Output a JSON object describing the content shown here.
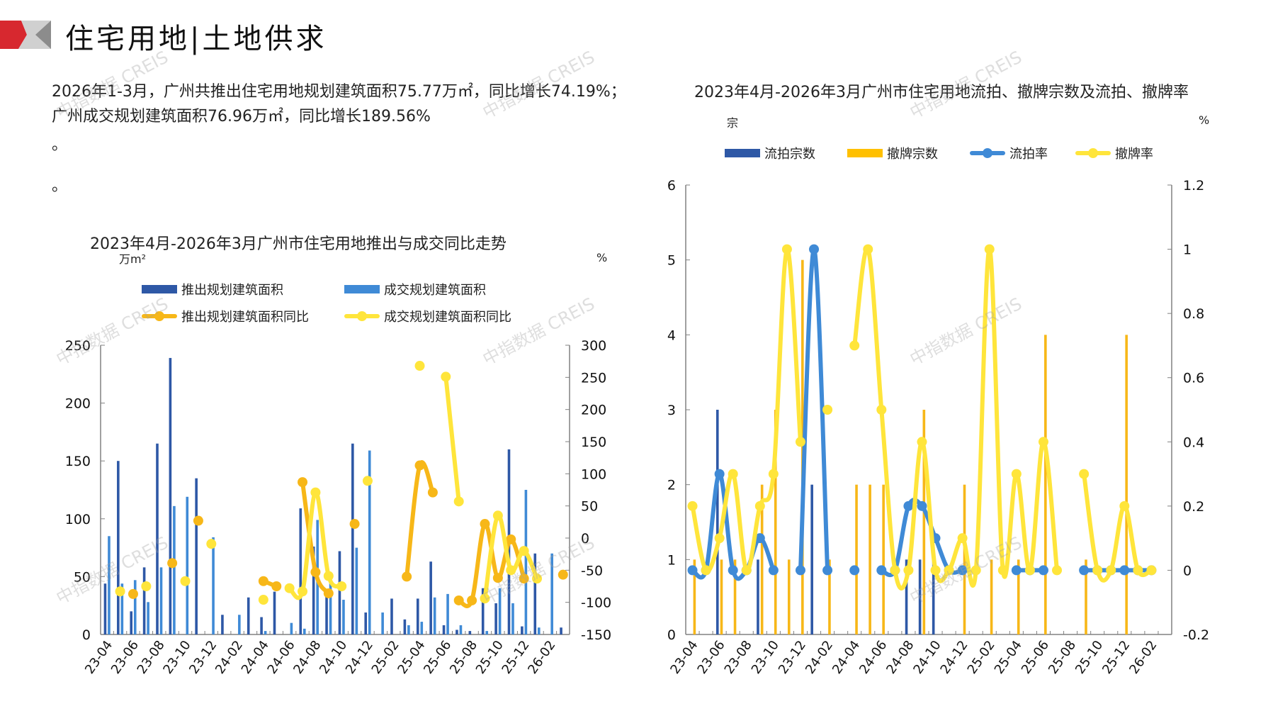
{
  "header": {
    "title": "住宅用地|土地供求",
    "summary": "2026年1-3月，广州共推出住宅用地规划建筑面积75.77万㎡，同比增长74.19%；广州成交规划建筑面积76.96万㎡，同比增长189.56%",
    "dot1": "。",
    "dot2": "。"
  },
  "watermark": "中指数据 CREIS",
  "colors": {
    "logo_red": "#d7282f",
    "logo_gray": "#a6a6a6",
    "dark_blue": "#2e58a6",
    "light_blue": "#3f8ad6",
    "orange": "#f7b718",
    "yellow": "#ffe53b",
    "axis": "#808080"
  },
  "chart_data": [
    {
      "type": "bar",
      "title": "2023年4月-2026年3月广州市住宅用地推出与成交同比走势",
      "ylabel": "万m²",
      "y2label": "%",
      "ylim": [
        0,
        250
      ],
      "yticks": [
        0,
        50,
        100,
        150,
        200,
        250
      ],
      "y2lim": [
        -150,
        300
      ],
      "y2ticks": [
        -150,
        -100,
        -50,
        0,
        50,
        100,
        150,
        200,
        250,
        300
      ],
      "legend_position": "top",
      "categories": [
        "23-04",
        "23-05",
        "23-06",
        "23-07",
        "23-08",
        "23-09",
        "23-10",
        "23-11",
        "23-12",
        "24-01",
        "24-02",
        "24-03",
        "24-04",
        "24-05",
        "24-06",
        "24-07",
        "24-08",
        "24-09",
        "24-10",
        "24-11",
        "24-12",
        "25-01",
        "25-02",
        "25-03",
        "25-04",
        "25-05",
        "25-06",
        "25-07",
        "25-08",
        "25-09",
        "25-10",
        "25-11",
        "25-12",
        "26-01",
        "26-02",
        "26-03"
      ],
      "xtick_labels": [
        "23-04",
        "23-06",
        "23-08",
        "23-10",
        "23-12",
        "24-02",
        "24-04",
        "24-06",
        "24-08",
        "24-10",
        "24-12",
        "25-02",
        "25-04",
        "25-06",
        "25-08",
        "25-10",
        "25-12",
        "26-02"
      ],
      "series": [
        {
          "name": "推出规划建筑面积",
          "kind": "bar",
          "axis": "left",
          "values": [
            44,
            150,
            20,
            58,
            165,
            239,
            0,
            135,
            0,
            17,
            0,
            32,
            15,
            37,
            0,
            109,
            76,
            37,
            72,
            165,
            19,
            0,
            31,
            13,
            31,
            63,
            8,
            4,
            3,
            40,
            27,
            160,
            7,
            70,
            0,
            6
          ]
        },
        {
          "name": "成交规划建筑面积",
          "kind": "bar",
          "axis": "left",
          "values": [
            85,
            44,
            47,
            28,
            58,
            111,
            119,
            0,
            84,
            0,
            17,
            0,
            3,
            0,
            10,
            5,
            99,
            45,
            30,
            75,
            159,
            19,
            0,
            8,
            11,
            32,
            35,
            8,
            0,
            3,
            40,
            27,
            125,
            6,
            70,
            0
          ]
        },
        {
          "name": "推出规划建筑面积同比",
          "kind": "line",
          "axis": "right",
          "values": [
            null,
            null,
            -87,
            null,
            null,
            -39,
            null,
            27,
            null,
            null,
            null,
            null,
            -67,
            -75,
            null,
            87,
            -53,
            -86,
            null,
            22,
            null,
            null,
            null,
            -60,
            113,
            71,
            null,
            -97,
            -97,
            22,
            -62,
            -2,
            -63,
            null,
            null,
            -57
          ]
        },
        {
          "name": "成交规划建筑面积同比",
          "kind": "line",
          "axis": "right",
          "values": [
            null,
            -83,
            null,
            -75,
            null,
            null,
            -67,
            null,
            -9,
            null,
            null,
            null,
            -96,
            null,
            -78,
            -83,
            71,
            -59,
            -75,
            null,
            89,
            null,
            null,
            null,
            268,
            null,
            251,
            57,
            null,
            -94,
            35,
            -50,
            -20,
            -63,
            null,
            null
          ]
        }
      ]
    },
    {
      "type": "bar",
      "title": "2023年4月-2026年3月广州市住宅用地流拍、撤牌宗数及流拍、撤牌率",
      "ylabel": "宗",
      "y2label": "%",
      "ylim": [
        0,
        6
      ],
      "yticks": [
        0,
        1,
        2,
        3,
        4,
        5,
        6
      ],
      "y2lim": [
        -0.2,
        1.2
      ],
      "y2ticks": [
        "-0.2",
        "0",
        "0.2",
        "0.4",
        "0.6",
        "0.8",
        "1",
        "1.2"
      ],
      "legend_position": "top",
      "categories": [
        "23-04",
        "23-05",
        "23-06",
        "23-07",
        "23-08",
        "23-09",
        "23-10",
        "23-11",
        "23-12",
        "24-01",
        "24-02",
        "24-03",
        "24-04",
        "24-05",
        "24-06",
        "24-07",
        "24-08",
        "24-09",
        "24-10",
        "24-11",
        "24-12",
        "25-01",
        "25-02",
        "25-03",
        "25-04",
        "25-05",
        "25-06",
        "25-07",
        "25-08",
        "25-09",
        "25-10",
        "25-11",
        "25-12",
        "26-01",
        "26-02",
        "26-03"
      ],
      "xtick_labels": [
        "23-04",
        "23-06",
        "23-08",
        "23-10",
        "23-12",
        "24-02",
        "24-04",
        "24-06",
        "24-08",
        "24-10",
        "24-12",
        "25-02",
        "25-04",
        "25-06",
        "25-08",
        "25-10",
        "25-12",
        "26-02"
      ],
      "series": [
        {
          "name": "流拍宗数",
          "kind": "bar",
          "axis": "left",
          "values": [
            0,
            0,
            3,
            0,
            0,
            1,
            0,
            0,
            0,
            2,
            0,
            0,
            0,
            0,
            0,
            0,
            1,
            1,
            1,
            0,
            0,
            0,
            0,
            0,
            0,
            0,
            0,
            0,
            0,
            0,
            0,
            0,
            0,
            0,
            0,
            0
          ]
        },
        {
          "name": "撤牌宗数",
          "kind": "bar",
          "axis": "left",
          "values": [
            1,
            0,
            1,
            1,
            0,
            2,
            3,
            1,
            5,
            0,
            1,
            0,
            2,
            2,
            2,
            0,
            0,
            3,
            0,
            0,
            2,
            0,
            1,
            0,
            1,
            0,
            4,
            0,
            0,
            1,
            0,
            0,
            4,
            0,
            0,
            0
          ]
        },
        {
          "name": "流拍率",
          "kind": "line",
          "axis": "right",
          "values": [
            0,
            0,
            0.3,
            0,
            0,
            0.1,
            0,
            null,
            0,
            1.0,
            0,
            null,
            0,
            null,
            0,
            0,
            0.2,
            0.2,
            0.1,
            0,
            0,
            null,
            null,
            null,
            0,
            0,
            0,
            null,
            null,
            0,
            0,
            0,
            0,
            0,
            0,
            null
          ]
        },
        {
          "name": "撤牌率",
          "kind": "line",
          "axis": "right",
          "values": [
            0.2,
            0,
            0.1,
            0.3,
            0,
            0.2,
            0.3,
            1.0,
            0.4,
            null,
            0.5,
            null,
            0.7,
            1.0,
            0.5,
            0,
            0,
            0.4,
            0,
            0,
            0.1,
            0,
            1.0,
            0,
            0.3,
            0,
            0.4,
            0,
            null,
            0.3,
            0,
            0,
            0.2,
            0,
            0,
            null
          ]
        }
      ]
    }
  ]
}
